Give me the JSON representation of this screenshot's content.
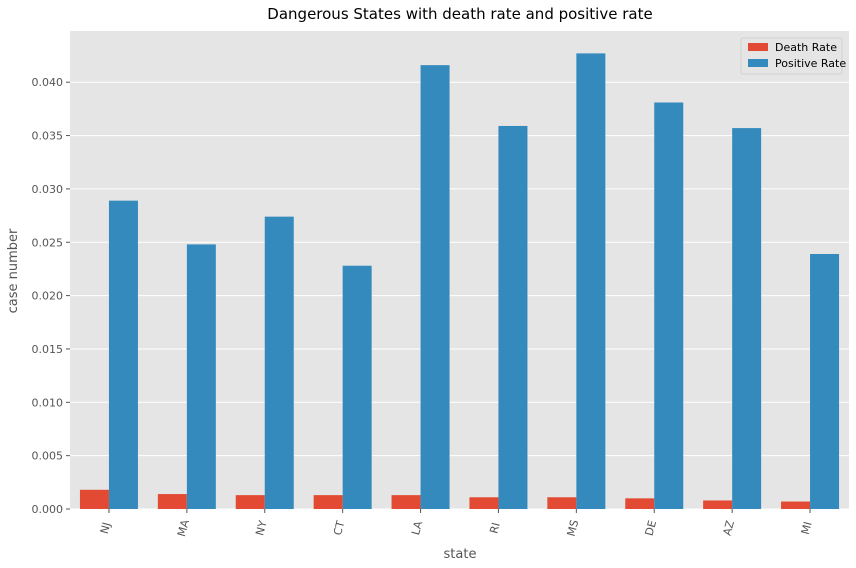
{
  "chart_data": {
    "type": "bar",
    "title": "Dangerous States with death rate and positive rate",
    "xlabel": "state",
    "ylabel": "case number",
    "categories": [
      "NJ",
      "MA",
      "NY",
      "CT",
      "LA",
      "RI",
      "MS",
      "DE",
      "AZ",
      "MI"
    ],
    "series": [
      {
        "name": "Death Rate",
        "color": "#E24A33",
        "values": [
          0.0018,
          0.0014,
          0.0013,
          0.0013,
          0.0013,
          0.0011,
          0.0011,
          0.001,
          0.0008,
          0.0007
        ]
      },
      {
        "name": "Positive Rate",
        "color": "#348ABD",
        "values": [
          0.0289,
          0.0248,
          0.0274,
          0.0228,
          0.0416,
          0.0359,
          0.0427,
          0.0381,
          0.0357,
          0.0239
        ]
      }
    ],
    "ylim": [
      0,
      0.0448
    ],
    "yticks": [
      "0.000",
      "0.005",
      "0.010",
      "0.015",
      "0.020",
      "0.025",
      "0.030",
      "0.035",
      "0.040"
    ],
    "grid": true,
    "legend_position": "top-right",
    "background": "#E5E5E5"
  }
}
